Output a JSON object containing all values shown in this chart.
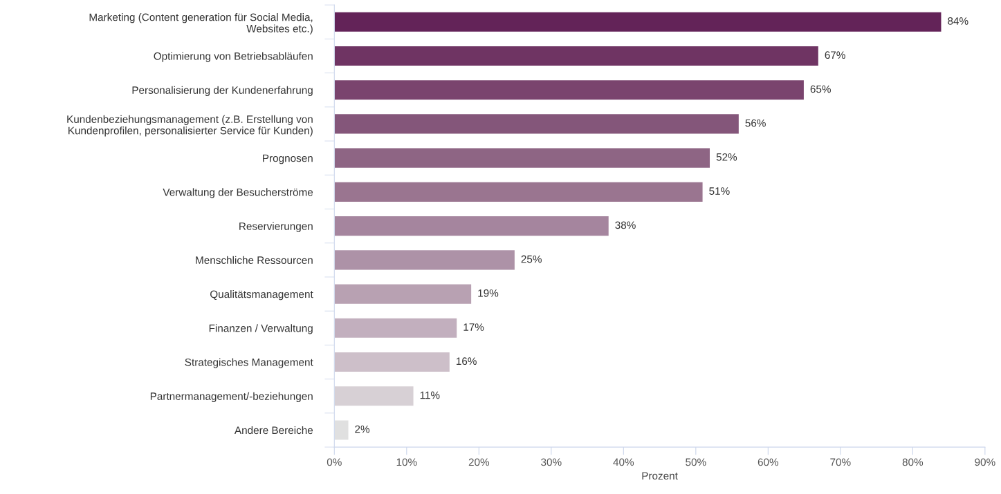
{
  "chart_data": {
    "type": "bar",
    "orientation": "horizontal",
    "xlabel": "Prozent",
    "categories": [
      "Marketing (Content generation für Social Media,\nWebsites etc.)",
      "Optimierung von Betriebsabläufen",
      "Personalisierung der Kundenerfahrung",
      "Kundenbeziehungsmanagement (z.B. Erstellung von\nKundenprofilen, personalisierter Service für Kunden)",
      "Prognosen",
      "Verwaltung der Besucherströme",
      "Reservierungen",
      "Menschliche Ressourcen",
      "Qualitätsmanagement",
      "Finanzen / Verwaltung",
      "Strategisches Management",
      "Partnermanagement/-beziehungen",
      "Andere Bereiche"
    ],
    "values": [
      84,
      67,
      65,
      56,
      52,
      51,
      38,
      25,
      19,
      17,
      16,
      11,
      2
    ],
    "value_labels": [
      "84%",
      "67%",
      "65%",
      "56%",
      "52%",
      "51%",
      "38%",
      "25%",
      "19%",
      "17%",
      "16%",
      "11%",
      "2%"
    ],
    "colors": [
      "#632358",
      "#6f3463",
      "#7a446e",
      "#84567a",
      "#8e6584",
      "#9a7590",
      "#a5859e",
      "#ad92a7",
      "#b8a1b2",
      "#c2afbe",
      "#cdbfc9",
      "#d7d0d5",
      "#e0e0e0"
    ],
    "xlim": [
      0,
      90
    ],
    "xticks": [
      {
        "value": 0,
        "label": "0%"
      },
      {
        "value": 10,
        "label": "10%"
      },
      {
        "value": 20,
        "label": "20%"
      },
      {
        "value": 30,
        "label": "30%"
      },
      {
        "value": 40,
        "label": "40%"
      },
      {
        "value": 50,
        "label": "50%"
      },
      {
        "value": 60,
        "label": "60%"
      },
      {
        "value": 70,
        "label": "70%"
      },
      {
        "value": 80,
        "label": "80%"
      },
      {
        "value": 90,
        "label": "90%"
      }
    ],
    "grid": false,
    "legend": false
  }
}
